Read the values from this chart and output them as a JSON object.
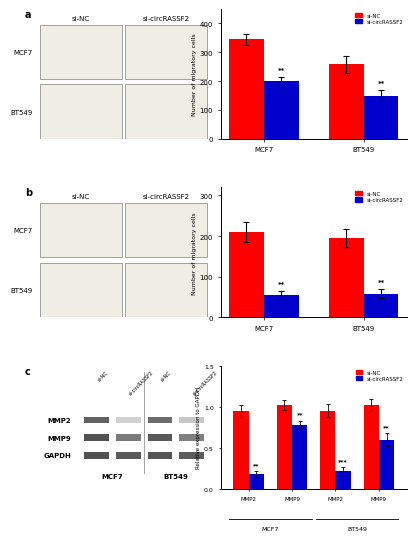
{
  "panel_a_bar": {
    "categories": [
      "MCF7",
      "BT549"
    ],
    "si_nc": [
      345,
      258
    ],
    "si_nc_err": [
      20,
      30
    ],
    "si_circ": [
      200,
      150
    ],
    "si_circ_err": [
      15,
      18
    ],
    "ylabel": "Number of migratory cells",
    "ylim": [
      0,
      450
    ],
    "yticks": [
      0,
      100,
      200,
      300,
      400
    ],
    "sig_labels": [
      "**",
      "**"
    ]
  },
  "panel_b_bar": {
    "categories": [
      "MCF7",
      "BT549"
    ],
    "si_nc": [
      210,
      195
    ],
    "si_nc_err": [
      25,
      22
    ],
    "si_circ": [
      55,
      58
    ],
    "si_circ_err": [
      10,
      12
    ],
    "ylabel": "Number of migratory cells",
    "ylim": [
      0,
      320
    ],
    "yticks": [
      0,
      100,
      200,
      300
    ],
    "sig_labels": [
      "**",
      "**"
    ]
  },
  "panel_c_bar": {
    "groups": [
      "MMP2",
      "MMP9",
      "MMP2",
      "MMP9"
    ],
    "cell_lines": [
      "MCF7",
      "MCF7",
      "BT549",
      "BT549"
    ],
    "si_nc": [
      0.95,
      1.02,
      0.95,
      1.02
    ],
    "si_nc_err": [
      0.07,
      0.06,
      0.08,
      0.07
    ],
    "si_circ": [
      0.18,
      0.78,
      0.22,
      0.6
    ],
    "si_circ_err": [
      0.04,
      0.05,
      0.05,
      0.08
    ],
    "ylabel": "Relative expression to GAPDH",
    "ylim": [
      0,
      1.5
    ],
    "yticks": [
      0.0,
      0.5,
      1.0,
      1.5
    ],
    "sig_labels": [
      "**",
      "**",
      "***",
      "**"
    ]
  },
  "colors": {
    "red": "#FF0000",
    "blue": "#0000CC"
  },
  "legend": {
    "si_nc": "si-NC",
    "si_circ": "si-circRASSF2"
  },
  "panel_labels": [
    "a",
    "b",
    "c"
  ],
  "bg_color": "#f0ede4",
  "wb_col_labels": [
    "si-NC",
    "si-circRASSF2",
    "si-NC",
    "si-circRASSF2"
  ],
  "wb_row_labels": [
    "MMP2",
    "MMP9",
    "GAPDH"
  ],
  "wb_cell_labels": [
    "MCF7",
    "BT549"
  ],
  "wb_band_mmp2": [
    0.38,
    0.82,
    0.42,
    0.78
  ],
  "wb_band_mmp9": [
    0.32,
    0.48,
    0.35,
    0.5
  ],
  "wb_band_gapdh": [
    0.32,
    0.35,
    0.33,
    0.36
  ]
}
